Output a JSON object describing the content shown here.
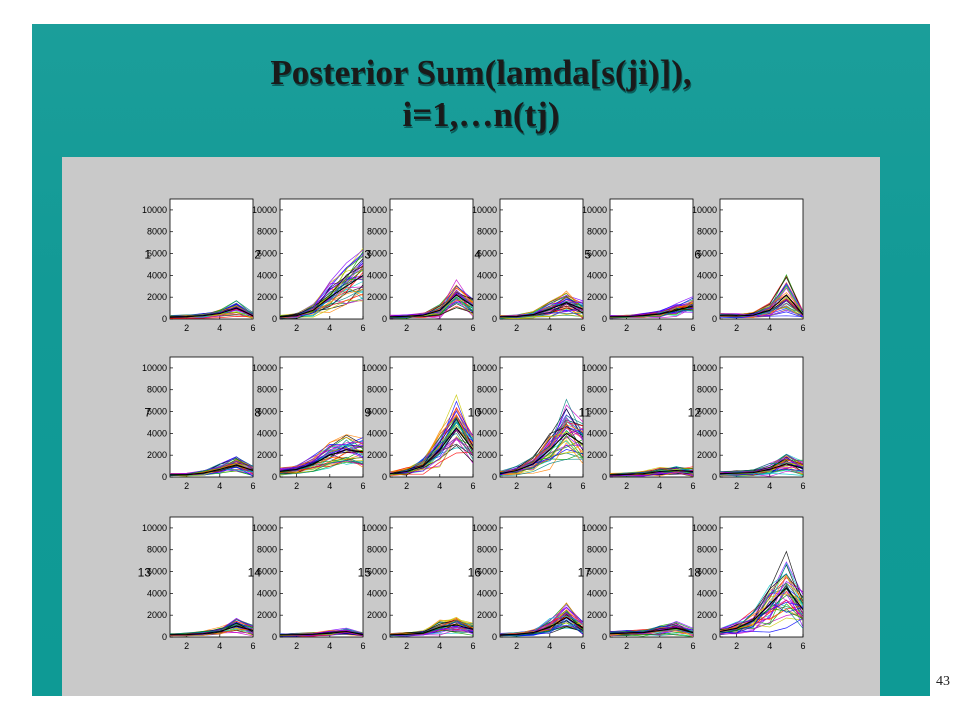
{
  "slide": {
    "title_line1": "Posterior Sum(lamda[s(ji)]),",
    "title_line2": "i=1,…n(tj)",
    "page_number": "43",
    "background_color": "#129a96",
    "panel_color": "#c9c9c9"
  },
  "chart_data": {
    "type": "line",
    "grid": "3x6 small multiples",
    "x_ticks": [
      2,
      4,
      6
    ],
    "y_ticks": [
      0,
      2000,
      4000,
      6000,
      8000,
      10000
    ],
    "xlim": [
      1,
      6
    ],
    "ylim": [
      0,
      11000
    ],
    "grid_lines": false,
    "x": [
      1,
      2,
      3,
      4,
      5,
      6
    ],
    "series_palette": [
      "#ff0000",
      "#00a000",
      "#0000ff",
      "#00c8c8",
      "#c800c8",
      "#c8c800",
      "#000000",
      "#ff8000",
      "#8000ff",
      "#008080"
    ],
    "panels": [
      {
        "label": "1",
        "median": [
          200,
          220,
          300,
          500,
          1000,
          300
        ],
        "spread": [
          80,
          90,
          120,
          200,
          350,
          200
        ]
      },
      {
        "label": "2",
        "median": [
          200,
          300,
          800,
          2000,
          3000,
          4000
        ],
        "spread": [
          100,
          150,
          400,
          700,
          1000,
          1200
        ]
      },
      {
        "label": "3",
        "median": [
          200,
          250,
          350,
          800,
          2200,
          1200
        ],
        "spread": [
          80,
          100,
          150,
          400,
          700,
          500
        ]
      },
      {
        "label": "4",
        "median": [
          200,
          220,
          400,
          900,
          1500,
          900
        ],
        "spread": [
          80,
          100,
          150,
          400,
          500,
          500
        ]
      },
      {
        "label": "5",
        "median": [
          200,
          220,
          300,
          450,
          800,
          1200
        ],
        "spread": [
          60,
          80,
          120,
          150,
          300,
          500
        ]
      },
      {
        "label": "6",
        "median": [
          300,
          280,
          350,
          800,
          2200,
          400
        ],
        "spread": [
          100,
          100,
          150,
          400,
          1000,
          250
        ]
      },
      {
        "label": "7",
        "median": [
          200,
          220,
          350,
          700,
          1100,
          600
        ],
        "spread": [
          60,
          80,
          120,
          300,
          400,
          350
        ]
      },
      {
        "label": "8",
        "median": [
          500,
          700,
          1200,
          2000,
          2500,
          2300
        ],
        "spread": [
          150,
          200,
          300,
          500,
          700,
          700
        ]
      },
      {
        "label": "9",
        "median": [
          300,
          500,
          1000,
          2500,
          4500,
          2500
        ],
        "spread": [
          100,
          200,
          400,
          700,
          1200,
          900
        ]
      },
      {
        "label": "10",
        "median": [
          300,
          600,
          1200,
          2500,
          4000,
          3000
        ],
        "spread": [
          100,
          200,
          400,
          800,
          1400,
          1000
        ]
      },
      {
        "label": "11",
        "median": [
          200,
          250,
          300,
          500,
          600,
          500
        ],
        "spread": [
          60,
          80,
          120,
          200,
          250,
          250
        ]
      },
      {
        "label": "12",
        "median": [
          300,
          350,
          400,
          700,
          1200,
          800
        ],
        "spread": [
          100,
          120,
          150,
          350,
          500,
          400
        ]
      },
      {
        "label": "13",
        "median": [
          200,
          220,
          300,
          500,
          1000,
          600
        ],
        "spread": [
          60,
          80,
          100,
          200,
          400,
          300
        ]
      },
      {
        "label": "14",
        "median": [
          200,
          210,
          250,
          350,
          500,
          250
        ],
        "spread": [
          50,
          60,
          80,
          120,
          150,
          120
        ]
      },
      {
        "label": "15",
        "median": [
          200,
          250,
          350,
          900,
          1100,
          700
        ],
        "spread": [
          60,
          80,
          120,
          350,
          400,
          350
        ]
      },
      {
        "label": "16",
        "median": [
          200,
          250,
          400,
          900,
          1800,
          800
        ],
        "spread": [
          60,
          80,
          150,
          400,
          900,
          400
        ]
      },
      {
        "label": "17",
        "median": [
          300,
          350,
          400,
          600,
          800,
          400
        ],
        "spread": [
          100,
          120,
          150,
          250,
          350,
          250
        ]
      },
      {
        "label": "18",
        "median": [
          500,
          800,
          1500,
          3000,
          4500,
          2500
        ],
        "spread": [
          200,
          300,
          600,
          1400,
          2000,
          1000
        ]
      }
    ]
  }
}
